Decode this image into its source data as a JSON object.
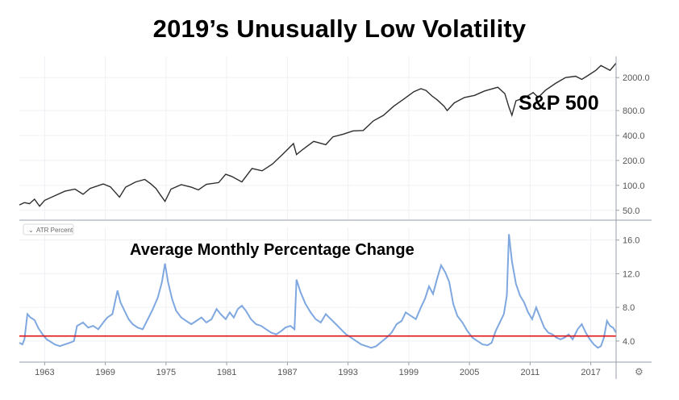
{
  "title": "2019’s Unusually Low Volatility",
  "colors": {
    "price_line": "#2e2e2e",
    "price_down": "#c0392b",
    "atr_line": "#7fa8e0",
    "threshold": "#e01010",
    "axis": "#9aa0a8",
    "grid": "#eef0f4"
  },
  "chart_data": [
    {
      "type": "line",
      "name": "price-panel",
      "series_label": "S&P 500",
      "y_scale": "log",
      "ylim": [
        38,
        3600
      ],
      "y_ticks": [
        50,
        100,
        200,
        400,
        800,
        2000
      ],
      "y_tick_labels": [
        "50.0",
        "100.0",
        "200.0",
        "400.0",
        "800.0",
        "2000.0"
      ],
      "x_range": [
        1960.5,
        2019.5
      ],
      "x": [
        1960.5,
        1961.0,
        1961.5,
        1962.0,
        1962.5,
        1963.0,
        1964.0,
        1965.0,
        1966.0,
        1966.8,
        1967.5,
        1968.8,
        1969.5,
        1970.4,
        1971.0,
        1972.0,
        1972.9,
        1973.5,
        1974.0,
        1974.5,
        1974.9,
        1975.5,
        1976.5,
        1977.5,
        1978.2,
        1979.0,
        1980.2,
        1980.9,
        1981.5,
        1982.5,
        1983.5,
        1984.5,
        1985.5,
        1986.5,
        1987.6,
        1987.9,
        1988.5,
        1989.6,
        1990.8,
        1991.5,
        1992.5,
        1993.5,
        1994.5,
        1995.5,
        1996.5,
        1997.5,
        1998.5,
        1999.5,
        2000.2,
        2000.7,
        2001.3,
        2001.8,
        2002.5,
        2002.8,
        2003.5,
        2004.5,
        2005.5,
        2006.5,
        2007.8,
        2008.5,
        2008.9,
        2009.2,
        2009.6,
        2010.5,
        2011.3,
        2011.8,
        2012.5,
        2013.5,
        2014.5,
        2015.5,
        2016.1,
        2016.8,
        2017.5,
        2018.0,
        2018.9,
        2019.5
      ],
      "values": [
        58,
        62,
        60,
        68,
        56,
        66,
        75,
        85,
        90,
        78,
        92,
        104,
        96,
        72,
        95,
        110,
        118,
        104,
        92,
        75,
        64,
        90,
        102,
        95,
        88,
        103,
        108,
        136,
        128,
        110,
        160,
        150,
        180,
        235,
        320,
        235,
        270,
        340,
        310,
        385,
        415,
        455,
        460,
        600,
        700,
        900,
        1100,
        1350,
        1470,
        1400,
        1200,
        1080,
        900,
        800,
        990,
        1150,
        1220,
        1380,
        1530,
        1280,
        880,
        700,
        1050,
        1150,
        1320,
        1150,
        1400,
        1700,
        2000,
        2080,
        1900,
        2150,
        2450,
        2800,
        2450,
        2990
      ]
    },
    {
      "type": "line",
      "name": "atr-panel",
      "series_label": "ATR Percent",
      "title": "Average Monthly Percentage Change",
      "ylim": [
        1.5,
        17.5
      ],
      "y_ticks": [
        4,
        8,
        12,
        16
      ],
      "y_tick_labels": [
        "4.0",
        "8.0",
        "12.0",
        "16.0"
      ],
      "threshold": 4.6,
      "x_range": [
        1960.5,
        2019.5
      ],
      "x_ticks": [
        1963,
        1969,
        1975,
        1981,
        1987,
        1993,
        1999,
        2005,
        2011,
        2017
      ],
      "x_tick_labels": [
        "1963",
        "1969",
        "1975",
        "1981",
        "1987",
        "1993",
        "1999",
        "2005",
        "2011",
        "2017"
      ],
      "x": [
        1960.5,
        1960.8,
        1961.0,
        1961.3,
        1961.6,
        1962.0,
        1962.4,
        1962.8,
        1963.2,
        1963.6,
        1964.0,
        1964.5,
        1965.0,
        1965.5,
        1965.9,
        1966.2,
        1966.8,
        1967.3,
        1967.8,
        1968.3,
        1968.8,
        1969.2,
        1969.7,
        1970.2,
        1970.5,
        1970.9,
        1971.3,
        1971.7,
        1972.2,
        1972.7,
        1973.2,
        1973.7,
        1974.2,
        1974.6,
        1974.9,
        1975.2,
        1975.6,
        1976.0,
        1976.5,
        1977.0,
        1977.5,
        1978.0,
        1978.5,
        1979.0,
        1979.5,
        1980.0,
        1980.4,
        1980.9,
        1981.3,
        1981.7,
        1982.1,
        1982.5,
        1982.9,
        1983.4,
        1983.9,
        1984.4,
        1984.9,
        1985.4,
        1985.9,
        1986.4,
        1986.8,
        1987.3,
        1987.7,
        1987.9,
        1988.3,
        1988.8,
        1989.3,
        1989.8,
        1990.3,
        1990.8,
        1991.3,
        1991.8,
        1992.3,
        1992.8,
        1993.3,
        1993.8,
        1994.3,
        1994.8,
        1995.3,
        1995.8,
        1996.3,
        1996.8,
        1997.3,
        1997.8,
        1998.3,
        1998.7,
        1999.2,
        1999.7,
        2000.2,
        2000.6,
        2001.0,
        2001.4,
        2001.8,
        2002.2,
        2002.6,
        2003.0,
        2003.4,
        2003.8,
        2004.3,
        2004.8,
        2005.3,
        2005.8,
        2006.3,
        2006.8,
        2007.2,
        2007.6,
        2008.0,
        2008.4,
        2008.7,
        2008.9,
        2009.2,
        2009.6,
        2010.0,
        2010.4,
        2010.8,
        2011.2,
        2011.6,
        2012.0,
        2012.4,
        2012.8,
        2013.2,
        2013.6,
        2014.0,
        2014.4,
        2014.8,
        2015.2,
        2015.7,
        2016.1,
        2016.5,
        2016.9,
        2017.3,
        2017.7,
        2018.0,
        2018.3,
        2018.6,
        2018.9,
        2019.2,
        2019.5
      ],
      "values": [
        3.8,
        3.6,
        4.2,
        7.2,
        6.8,
        6.5,
        5.5,
        4.8,
        4.2,
        3.9,
        3.6,
        3.4,
        3.6,
        3.8,
        4.0,
        5.8,
        6.2,
        5.6,
        5.8,
        5.4,
        6.2,
        6.8,
        7.2,
        10.0,
        8.6,
        7.6,
        6.6,
        6.0,
        5.6,
        5.4,
        6.6,
        7.8,
        9.2,
        11.0,
        13.2,
        11.0,
        9.0,
        7.6,
        6.8,
        6.4,
        6.0,
        6.4,
        6.8,
        6.2,
        6.6,
        7.8,
        7.2,
        6.6,
        7.4,
        6.8,
        7.8,
        8.2,
        7.6,
        6.6,
        6.0,
        5.8,
        5.4,
        5.0,
        4.8,
        5.2,
        5.6,
        5.8,
        5.4,
        11.3,
        9.8,
        8.4,
        7.4,
        6.6,
        6.2,
        7.2,
        6.6,
        6.0,
        5.4,
        4.8,
        4.4,
        4.0,
        3.6,
        3.4,
        3.2,
        3.4,
        3.9,
        4.4,
        5.0,
        6.0,
        6.4,
        7.4,
        7.0,
        6.6,
        8.0,
        9.0,
        10.5,
        9.6,
        11.4,
        13.0,
        12.2,
        11.0,
        8.4,
        7.0,
        6.2,
        5.2,
        4.4,
        4.0,
        3.6,
        3.5,
        3.8,
        5.2,
        6.2,
        7.2,
        9.4,
        16.7,
        13.5,
        10.8,
        9.4,
        8.6,
        7.4,
        6.6,
        8.0,
        6.8,
        5.6,
        5.0,
        4.8,
        4.4,
        4.2,
        4.4,
        4.8,
        4.2,
        5.4,
        6.0,
        5.0,
        4.2,
        3.6,
        3.2,
        3.4,
        4.4,
        6.4,
        5.8,
        5.6,
        5.0
      ]
    }
  ]
}
